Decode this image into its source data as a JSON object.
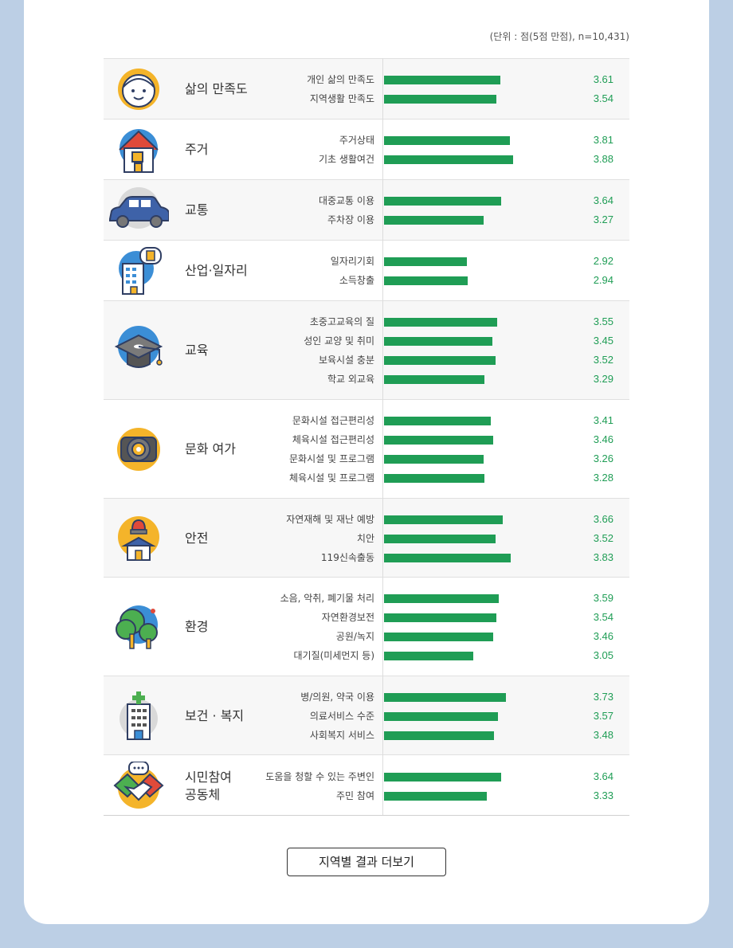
{
  "unit_note": "(단위 : 점(5점 만점), n=10,431)",
  "more_button": "지역별 결과 더보기",
  "colors": {
    "bar": "#1f9d55",
    "value": "#1f9d55",
    "background": "#bccfe5"
  },
  "chart_data": {
    "type": "bar",
    "orientation": "horizontal",
    "xlim": [
      0,
      5
    ],
    "categories": [
      {
        "name": "삶의 만족도",
        "icon": "smiling-face-icon",
        "items": [
          {
            "label": "개인 삶의 만족도",
            "value": 3.61,
            "text": "3.61"
          },
          {
            "label": "지역생활 만족도",
            "value": 3.54,
            "text": "3.54"
          }
        ]
      },
      {
        "name": "주거",
        "icon": "house-icon",
        "items": [
          {
            "label": "주거상태",
            "value": 3.81,
            "text": "3.81"
          },
          {
            "label": "기초 생활여건",
            "value": 3.88,
            "text": "3.88"
          }
        ]
      },
      {
        "name": "교통",
        "icon": "car-icon",
        "items": [
          {
            "label": "대중교통 이용",
            "value": 3.64,
            "text": "3.64"
          },
          {
            "label": "주차장 이용",
            "value": 3.27,
            "text": "3.27"
          }
        ]
      },
      {
        "name": "산업·일자리",
        "icon": "office-building-icon",
        "items": [
          {
            "label": "일자리기회",
            "value": 2.92,
            "text": "2.92"
          },
          {
            "label": "소득창출",
            "value": 2.94,
            "text": "2.94"
          }
        ]
      },
      {
        "name": "교육",
        "icon": "graduation-cap-icon",
        "items": [
          {
            "label": "초중고교육의 질",
            "value": 3.55,
            "text": "3.55"
          },
          {
            "label": "성인 교양 및 취미",
            "value": 3.45,
            "text": "3.45"
          },
          {
            "label": "보육시설 충분",
            "value": 3.52,
            "text": "3.52"
          },
          {
            "label": "학교 외교육",
            "value": 3.29,
            "text": "3.29"
          }
        ]
      },
      {
        "name": "문화 여가",
        "icon": "stage-light-icon",
        "items": [
          {
            "label": "문화시설 접근편리성",
            "value": 3.41,
            "text": "3.41"
          },
          {
            "label": "체육시설 접근편리성",
            "value": 3.46,
            "text": "3.46"
          },
          {
            "label": "문화시설 및 프로그램",
            "value": 3.26,
            "text": "3.26"
          },
          {
            "label": "체육시설 및 프로그램",
            "value": 3.28,
            "text": "3.28"
          }
        ]
      },
      {
        "name": "안전",
        "icon": "siren-house-icon",
        "items": [
          {
            "label": "자연재해 및 재난 예방",
            "value": 3.66,
            "text": "3.66"
          },
          {
            "label": "치안",
            "value": 3.52,
            "text": "3.52"
          },
          {
            "label": "119신속출동",
            "value": 3.83,
            "text": "3.83"
          }
        ]
      },
      {
        "name": "환경",
        "icon": "trees-icon",
        "items": [
          {
            "label": "소음, 악취, 폐기물 처리",
            "value": 3.59,
            "text": "3.59"
          },
          {
            "label": "자연환경보전",
            "value": 3.54,
            "text": "3.54"
          },
          {
            "label": "공원/녹지",
            "value": 3.46,
            "text": "3.46"
          },
          {
            "label": "대기질(미세먼지 등)",
            "value": 3.05,
            "text": "3.05"
          }
        ]
      },
      {
        "name": "보건 · 복지",
        "icon": "hospital-icon",
        "items": [
          {
            "label": "병/의원, 약국 이용",
            "value": 3.73,
            "text": "3.73"
          },
          {
            "label": "의료서비스 수준",
            "value": 3.57,
            "text": "3.57"
          },
          {
            "label": "사회복지 서비스",
            "value": 3.48,
            "text": "3.48"
          }
        ]
      },
      {
        "name": "시민참여\n공동체",
        "icon": "handshake-icon",
        "items": [
          {
            "label": "도움을 청할 수 있는 주변인",
            "value": 3.64,
            "text": "3.64"
          },
          {
            "label": "주민 참여",
            "value": 3.33,
            "text": "3.33"
          }
        ]
      }
    ]
  }
}
